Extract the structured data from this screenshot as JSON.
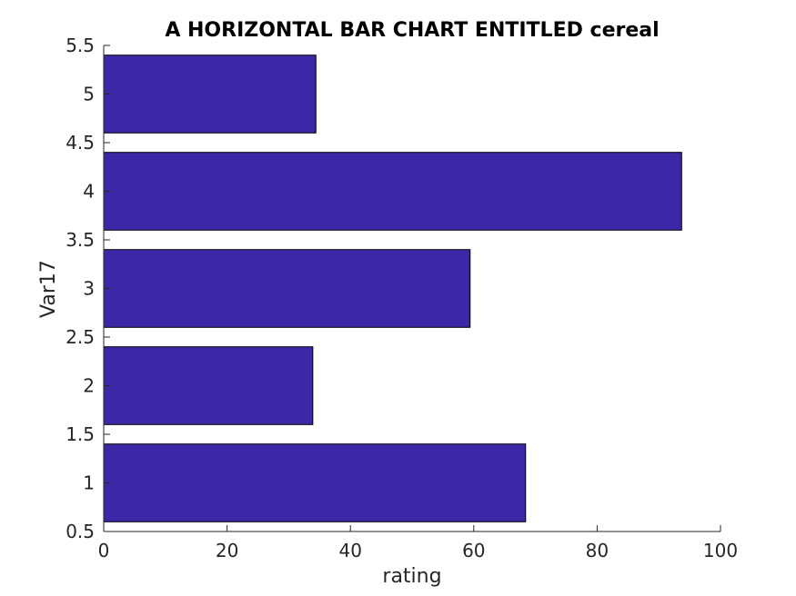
{
  "chart_data": {
    "type": "bar",
    "orientation": "horizontal",
    "title": "A HORIZONTAL BAR CHART ENTITLED cereal",
    "xlabel": "rating",
    "ylabel": "Var17",
    "categories": [
      1,
      2,
      3,
      4,
      5
    ],
    "values": [
      68.4,
      33.9,
      59.4,
      93.7,
      34.4
    ],
    "xlim": [
      0,
      100
    ],
    "ylim": [
      0.5,
      5.5
    ],
    "xticks": [
      "0",
      "20",
      "40",
      "60",
      "80",
      "100"
    ],
    "yticks": [
      "0.5",
      "1",
      "1.5",
      "2",
      "2.5",
      "3",
      "3.5",
      "4",
      "4.5",
      "5",
      "5.5"
    ],
    "grid": false,
    "bar_color": "#3c27a7",
    "edge_color": "#000000"
  }
}
